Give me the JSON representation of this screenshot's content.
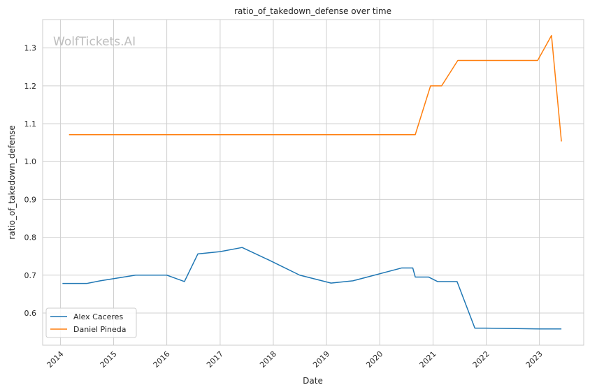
{
  "watermark": "WolfTickets.AI",
  "colors": {
    "background": "#ffffff",
    "grid": "#d0d0d0",
    "frame": "#cccccc",
    "series_1": "#1f77b4",
    "series_2": "#ff7f0e",
    "text": "#262626"
  },
  "chart_data": {
    "type": "line",
    "title": "ratio_of_takedown_defense over time",
    "xlabel": "Date",
    "ylabel": "ratio_of_takedown_defense",
    "x_axis_type": "date",
    "grid": true,
    "legend_position": "lower-left",
    "xlim": [
      "2013-09-01",
      "2023-11-01"
    ],
    "ylim": [
      0.515,
      1.375
    ],
    "x_ticks": [
      "2014",
      "2015",
      "2016",
      "2017",
      "2018",
      "2019",
      "2020",
      "2021",
      "2022",
      "2023"
    ],
    "y_ticks": [
      "0.6",
      "0.7",
      "0.8",
      "0.9",
      "1.0",
      "1.1",
      "1.2",
      "1.3"
    ],
    "series": [
      {
        "name": "Alex Caceres",
        "color": "#1f77b4",
        "points": [
          {
            "x": "2014-01-15",
            "y": 0.678
          },
          {
            "x": "2014-07-01",
            "y": 0.678
          },
          {
            "x": "2014-10-01",
            "y": 0.685
          },
          {
            "x": "2015-06-01",
            "y": 0.7
          },
          {
            "x": "2016-01-01",
            "y": 0.7
          },
          {
            "x": "2016-05-01",
            "y": 0.683
          },
          {
            "x": "2016-08-01",
            "y": 0.756
          },
          {
            "x": "2017-01-01",
            "y": 0.762
          },
          {
            "x": "2017-06-01",
            "y": 0.773
          },
          {
            "x": "2017-12-01",
            "y": 0.74
          },
          {
            "x": "2018-07-01",
            "y": 0.7
          },
          {
            "x": "2019-02-01",
            "y": 0.679
          },
          {
            "x": "2019-07-01",
            "y": 0.685
          },
          {
            "x": "2020-06-01",
            "y": 0.719
          },
          {
            "x": "2020-08-15",
            "y": 0.719
          },
          {
            "x": "2020-09-01",
            "y": 0.695
          },
          {
            "x": "2020-12-01",
            "y": 0.695
          },
          {
            "x": "2021-02-01",
            "y": 0.683
          },
          {
            "x": "2021-06-15",
            "y": 0.683
          },
          {
            "x": "2021-10-15",
            "y": 0.56
          },
          {
            "x": "2022-01-01",
            "y": 0.56
          },
          {
            "x": "2023-01-01",
            "y": 0.558
          },
          {
            "x": "2023-06-01",
            "y": 0.558
          }
        ]
      },
      {
        "name": "Daniel Pineda",
        "color": "#ff7f0e",
        "points": [
          {
            "x": "2014-03-01",
            "y": 1.071
          },
          {
            "x": "2020-09-01",
            "y": 1.071
          },
          {
            "x": "2020-12-15",
            "y": 1.2
          },
          {
            "x": "2021-03-01",
            "y": 1.2
          },
          {
            "x": "2021-06-20",
            "y": 1.267
          },
          {
            "x": "2022-12-20",
            "y": 1.267
          },
          {
            "x": "2023-03-25",
            "y": 1.333
          },
          {
            "x": "2023-06-01",
            "y": 1.053
          }
        ]
      }
    ]
  }
}
